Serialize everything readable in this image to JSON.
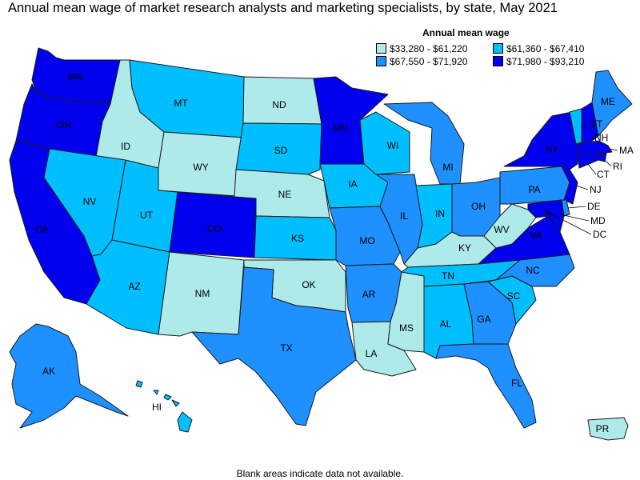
{
  "title": "Annual mean wage of market research analysts and marketing specialists, by state, May 2021",
  "legend": {
    "title": "Annual mean wage",
    "items": [
      {
        "label": "$33,280 - $61,220",
        "color": "#aeeaea"
      },
      {
        "label": "$67,550 - $71,920",
        "color": "#1e90ff"
      },
      {
        "label": "$61,360 - $67,410",
        "color": "#00bfff"
      },
      {
        "label": "$71,980 - $93,210",
        "color": "#0000ee"
      }
    ]
  },
  "colors": {
    "tier1": "#aeeaea",
    "tier2": "#00bfff",
    "tier3": "#1e90ff",
    "tier4": "#0000ee"
  },
  "states": {
    "WA": {
      "label": "WA",
      "tier": 4
    },
    "OR": {
      "label": "OR",
      "tier": 4
    },
    "CA": {
      "label": "CA",
      "tier": 4
    },
    "ID": {
      "label": "ID",
      "tier": 1
    },
    "NV": {
      "label": "NV",
      "tier": 2
    },
    "MT": {
      "label": "MT",
      "tier": 2
    },
    "WY": {
      "label": "WY",
      "tier": 1
    },
    "UT": {
      "label": "UT",
      "tier": 2
    },
    "AZ": {
      "label": "AZ",
      "tier": 2
    },
    "CO": {
      "label": "CO",
      "tier": 4
    },
    "NM": {
      "label": "NM",
      "tier": 1
    },
    "ND": {
      "label": "ND",
      "tier": 1
    },
    "SD": {
      "label": "SD",
      "tier": 2
    },
    "NE": {
      "label": "NE",
      "tier": 1
    },
    "KS": {
      "label": "KS",
      "tier": 2
    },
    "OK": {
      "label": "OK",
      "tier": 1
    },
    "TX": {
      "label": "TX",
      "tier": 3
    },
    "MN": {
      "label": "MN",
      "tier": 4
    },
    "IA": {
      "label": "IA",
      "tier": 2
    },
    "MO": {
      "label": "MO",
      "tier": 3
    },
    "AR": {
      "label": "AR",
      "tier": 3
    },
    "LA": {
      "label": "LA",
      "tier": 1
    },
    "WI": {
      "label": "WI",
      "tier": 2
    },
    "IL": {
      "label": "IL",
      "tier": 3
    },
    "MS": {
      "label": "MS",
      "tier": 1
    },
    "MI": {
      "label": "MI",
      "tier": 3
    },
    "IN": {
      "label": "IN",
      "tier": 2
    },
    "OH": {
      "label": "OH",
      "tier": 3
    },
    "KY": {
      "label": "KY",
      "tier": 1
    },
    "TN": {
      "label": "TN",
      "tier": 2
    },
    "AL": {
      "label": "AL",
      "tier": 2
    },
    "GA": {
      "label": "GA",
      "tier": 3
    },
    "FL": {
      "label": "FL",
      "tier": 3
    },
    "SC": {
      "label": "SC",
      "tier": 2
    },
    "NC": {
      "label": "NC",
      "tier": 3
    },
    "VA": {
      "label": "VA",
      "tier": 4
    },
    "WV": {
      "label": "WV",
      "tier": 1
    },
    "PA": {
      "label": "PA",
      "tier": 3
    },
    "NY": {
      "label": "NY",
      "tier": 4
    },
    "VT": {
      "label": "VT",
      "tier": 2
    },
    "NH": {
      "label": "NH",
      "tier": 4
    },
    "ME": {
      "label": "ME",
      "tier": 3
    },
    "MA": {
      "label": "MA",
      "tier": 4
    },
    "RI": {
      "label": "RI",
      "tier": 4
    },
    "CT": {
      "label": "CT",
      "tier": 4
    },
    "NJ": {
      "label": "NJ",
      "tier": 4
    },
    "DE": {
      "label": "DE",
      "tier": 3
    },
    "MD": {
      "label": "MD",
      "tier": 4
    },
    "DC": {
      "label": "DC",
      "tier": 4
    },
    "AK": {
      "label": "AK",
      "tier": 3
    },
    "HI": {
      "label": "HI",
      "tier": 2
    },
    "PR": {
      "label": "PR",
      "tier": 1
    }
  },
  "footnote": "Blank areas indicate data not available."
}
